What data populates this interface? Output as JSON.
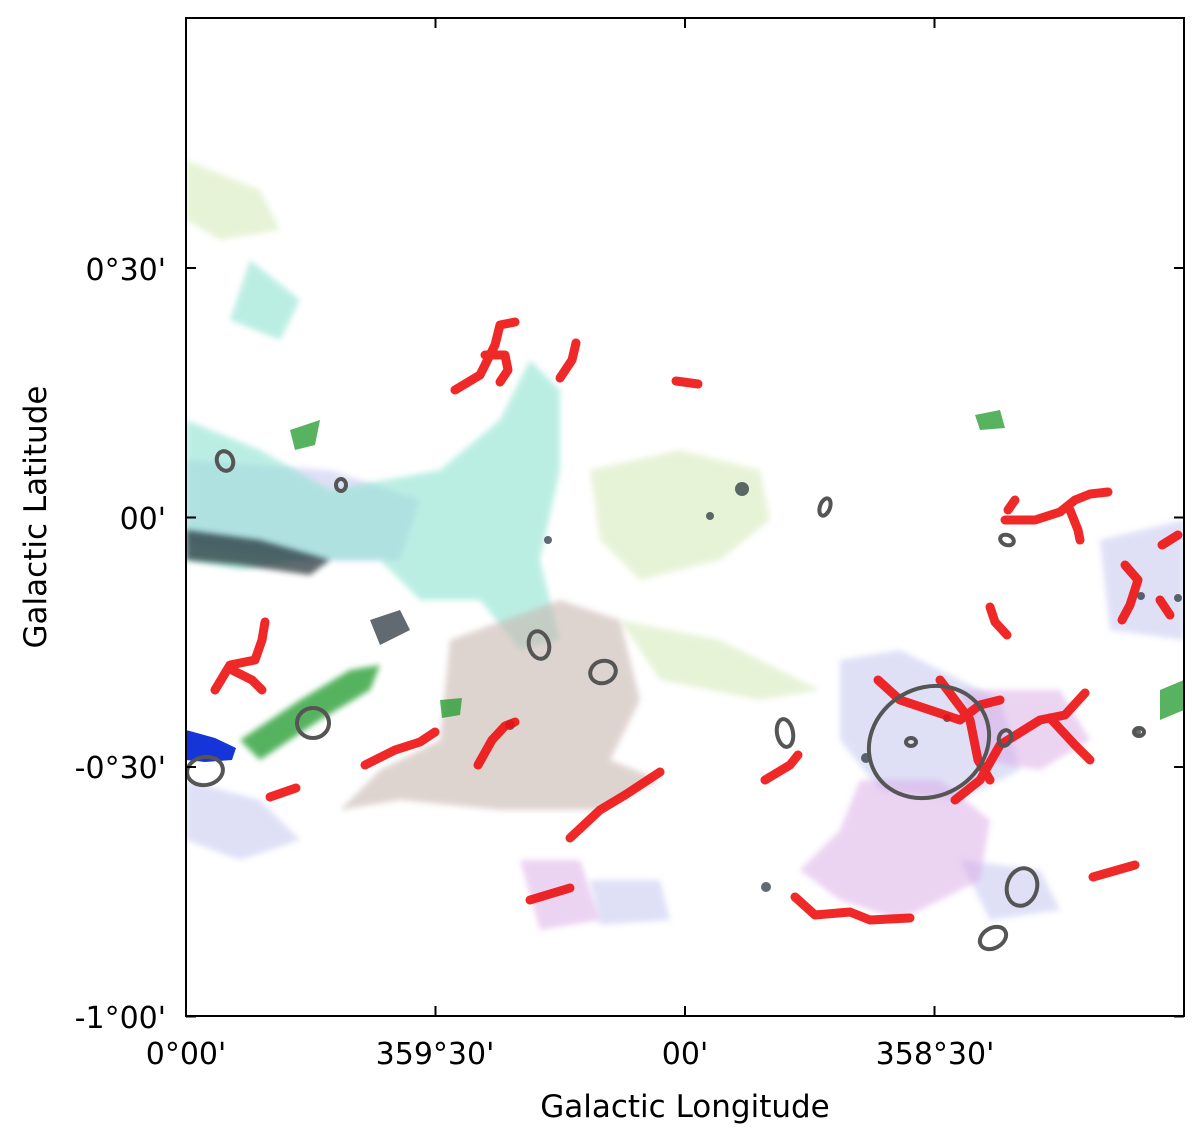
{
  "chart_data": {
    "type": "image",
    "xlabel": "Galactic Longitude",
    "ylabel": "Galactic Latitude",
    "xlim": [
      0.0,
      -1.0
    ],
    "ylim": [
      -1.0,
      0.5
    ],
    "x_ticks": [
      {
        "value": 0.0,
        "label": "0°00'"
      },
      {
        "value": -0.5,
        "label": "359°30'"
      },
      {
        "value": -1.0,
        "label": "00'"
      },
      {
        "value": -1.5,
        "label": "358°30'"
      }
    ],
    "y_ticks": [
      {
        "value": 0.5,
        "label": "0°30'"
      },
      {
        "value": 0.0,
        "label": "00'"
      },
      {
        "value": -0.5,
        "label": "-0°30'"
      },
      {
        "value": -1.0,
        "label": "-1°00'"
      }
    ],
    "colors": {
      "filament": "#ee1111",
      "ellipse": "#555555",
      "cyan_emission": "#8fe3d2",
      "green_emission": "#1f9a2a",
      "blue_emission": "#1535d8",
      "purple_emission": "#c9a0d9",
      "lavender_emission": "#b8bdf0",
      "tan_emission": "#c9b8b0",
      "lightgreen_emission": "#cfe8b0"
    }
  }
}
